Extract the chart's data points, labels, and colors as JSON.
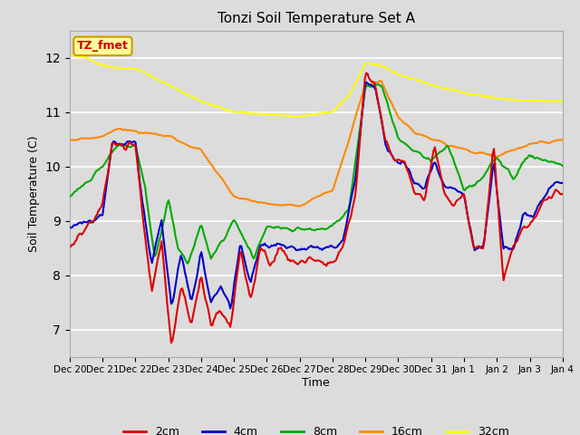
{
  "title": "Tonzi Soil Temperature Set A",
  "xlabel": "Time",
  "ylabel": "Soil Temperature (C)",
  "ylim": [
    6.5,
    12.5
  ],
  "annotation_text": "TZ_fmet",
  "annotation_bg": "#ffff99",
  "annotation_border": "#cc9900",
  "annotation_text_color": "#cc0000",
  "bg_color": "#dcdcdc",
  "line_colors": {
    "2cm": "#dd0000",
    "4cm": "#0000cc",
    "8cm": "#00aa00",
    "16cm": "#ff8800",
    "32cm": "#ffff00"
  },
  "x_tick_labels": [
    "Dec 20",
    "Dec 21",
    "Dec 22",
    "Dec 23",
    "Dec 24",
    "Dec 25",
    "Dec 26",
    "Dec 27",
    "Dec 28",
    "Dec 29",
    "Dec 30",
    "Dec 31",
    "Jan 1",
    "Jan 2",
    "Jan 3",
    "Jan 4"
  ]
}
